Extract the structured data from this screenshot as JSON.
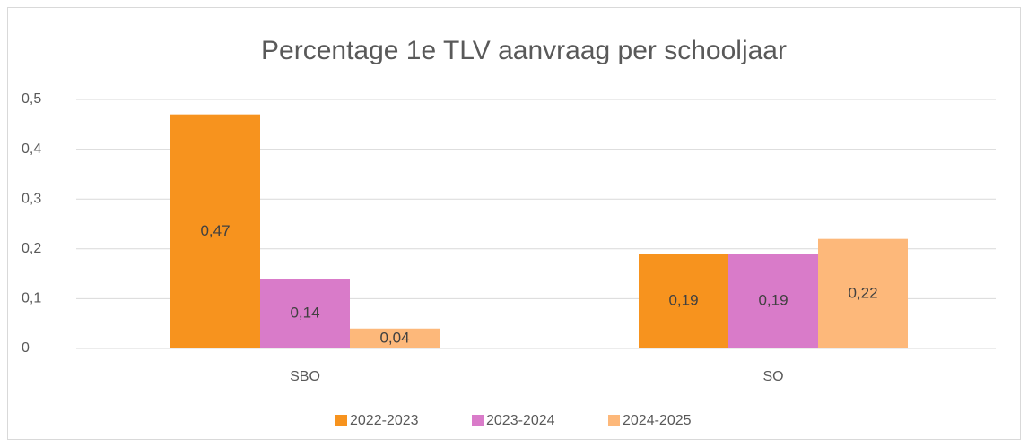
{
  "chart_data": {
    "type": "bar",
    "title": "Percentage 1e TLV aanvraag per schooljaar",
    "categories": [
      "SBO",
      "SO"
    ],
    "series": [
      {
        "name": "2022-2023",
        "color": "#f7931e",
        "values": [
          0.47,
          0.19
        ],
        "value_labels": [
          "0,47",
          "0,19"
        ]
      },
      {
        "name": "2023-2024",
        "color": "#d97bc9",
        "values": [
          0.14,
          0.19
        ],
        "value_labels": [
          "0,14",
          "0,19"
        ]
      },
      {
        "name": "2024-2025",
        "color": "#fdb87a",
        "values": [
          0.04,
          0.22
        ],
        "value_labels": [
          "0,04",
          "0,22"
        ]
      }
    ],
    "ylim": [
      0,
      0.5
    ],
    "yticks": [
      0,
      {
        "value": 0.1,
        "label": "0,1"
      },
      {
        "value": 0.2,
        "label": "0,2"
      },
      {
        "value": 0.3,
        "label": "0,3"
      },
      {
        "value": 0.4,
        "label": "0,4"
      },
      {
        "value": 0.5,
        "label": "0,5"
      }
    ],
    "grid": true,
    "legend": "bottom"
  }
}
